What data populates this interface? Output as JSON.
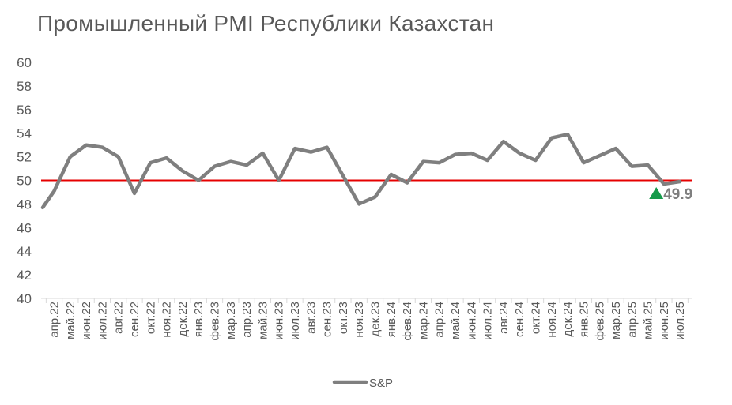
{
  "title": "Промышленный PMI Республики Казахстан",
  "chart_data": {
    "type": "line",
    "title": "Промышленный PMI Республики Казахстан",
    "categories": [
      "апр.22",
      "май.22",
      "июн.22",
      "июл.22",
      "авг.22",
      "сен.22",
      "окт.22",
      "ноя.22",
      "дек.22",
      "янв.23",
      "фев.23",
      "мар.23",
      "апр.23",
      "май.23",
      "июн.23",
      "июл.23",
      "авг.23",
      "сен.23",
      "окт.23",
      "ноя.23",
      "дек.23",
      "янв.24",
      "фев.24",
      "мар.24",
      "апр.24",
      "май.24",
      "июн.24",
      "июл.24",
      "авг.24",
      "сен.24",
      "окт.24",
      "ноя.24",
      "дек.24",
      "янв.25",
      "фев.25",
      "мар.25",
      "апр.25",
      "май.25",
      "июн.25",
      "июл.25"
    ],
    "series": [
      {
        "name": "S&P",
        "color": "#7f7f7f",
        "lead_in_value": 47.7,
        "values": [
          49.1,
          52.0,
          53.0,
          52.8,
          52.0,
          48.9,
          51.5,
          51.9,
          50.8,
          50.0,
          51.2,
          51.6,
          51.3,
          52.3,
          50.0,
          52.7,
          52.4,
          52.8,
          50.4,
          48.0,
          48.6,
          50.5,
          49.8,
          51.6,
          51.5,
          52.2,
          52.3,
          51.7,
          53.3,
          52.3,
          51.7,
          53.6,
          53.9,
          51.5,
          52.1,
          52.7,
          51.2,
          51.3,
          49.7,
          49.9
        ]
      }
    ],
    "reference_line": {
      "value": 50,
      "color": "#e60000"
    },
    "ylim": [
      40,
      60
    ],
    "yticks": [
      40,
      42,
      44,
      46,
      48,
      50,
      52,
      54,
      56,
      58,
      60
    ],
    "grid": false,
    "legend": "bottom",
    "annotation": {
      "text": "49.9",
      "marker": "up-triangle",
      "marker_color": "#169b4b"
    }
  }
}
